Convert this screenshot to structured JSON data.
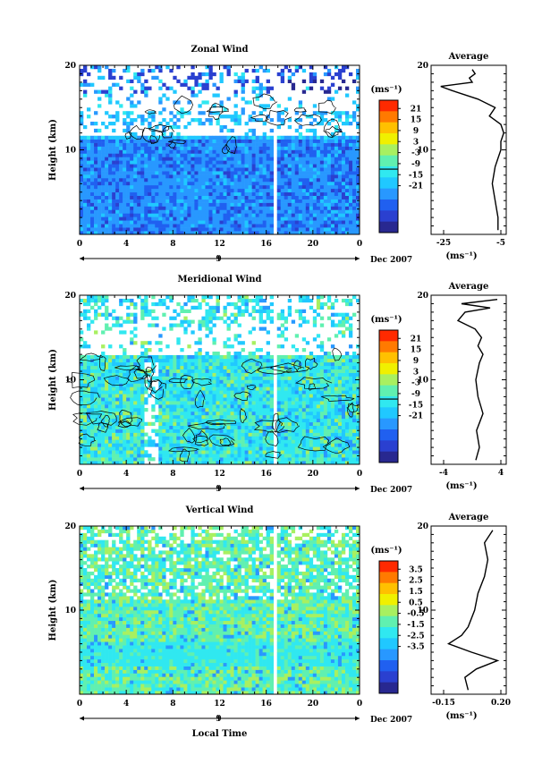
{
  "chart_data": [
    {
      "type": "heatmap",
      "title": "Zonal Wind",
      "ylabel": "Height (km)",
      "units": "(ms⁻¹)",
      "ylim": [
        0,
        20
      ],
      "yticks": [
        "20",
        "10"
      ],
      "xticks": [
        "0",
        "4",
        "8",
        "12",
        "16",
        "20",
        "0"
      ],
      "date_tick": "9",
      "date_label": "Dec 2007",
      "colorbar_ticks": [
        "21",
        "15",
        "9",
        "3",
        "-3",
        "-9",
        "-15",
        "-21"
      ],
      "profile": {
        "title": "Average",
        "xticks": [
          "-25",
          "-5"
        ],
        "xlabel": "(ms⁻¹)",
        "yticks": [
          "20",
          "10"
        ],
        "height_km": [
          0.5,
          2,
          4,
          6,
          8,
          9,
          10,
          11,
          12,
          13,
          14,
          15,
          16,
          17,
          17.5,
          18,
          18.5,
          19,
          19.5
        ],
        "value": [
          -6,
          -6,
          -7,
          -8,
          -7,
          -6,
          -5,
          -5,
          -4,
          -5,
          -9,
          -7,
          -13,
          -22,
          -26,
          -15,
          -16,
          -14,
          -15
        ]
      }
    },
    {
      "type": "heatmap",
      "title": "Meridional Wind",
      "ylabel": "Height (km)",
      "units": "(ms⁻¹)",
      "ylim": [
        0,
        20
      ],
      "yticks": [
        "20",
        "10"
      ],
      "xticks": [
        "0",
        "4",
        "8",
        "12",
        "16",
        "20",
        "0"
      ],
      "date_tick": "9",
      "date_label": "Dec 2007",
      "colorbar_ticks": [
        "21",
        "15",
        "9",
        "3",
        "-3",
        "-9",
        "-15",
        "-21"
      ],
      "profile": {
        "title": "Average",
        "xticks": [
          "-4",
          "4"
        ],
        "xlabel": "(ms⁻¹)",
        "yticks": [
          "20",
          "10"
        ],
        "height_km": [
          0.5,
          2,
          4,
          6,
          8,
          10,
          12,
          13,
          14,
          15,
          16,
          17,
          18,
          18.5,
          19,
          19.5
        ],
        "value": [
          0.5,
          1.0,
          0.6,
          1.5,
          0.8,
          0.5,
          1.0,
          1.5,
          0.8,
          1.3,
          0.4,
          -2.0,
          -1.0,
          2.5,
          -1.5,
          3.5
        ]
      }
    },
    {
      "type": "heatmap",
      "title": "Vertical Wind",
      "ylabel": "Height (km)",
      "xlabel": "Local Time",
      "units": "(ms⁻¹)",
      "ylim": [
        0,
        20
      ],
      "yticks": [
        "20",
        "10"
      ],
      "xticks": [
        "0",
        "4",
        "8",
        "12",
        "16",
        "20",
        "0"
      ],
      "date_tick": "9",
      "date_label": "Dec 2007",
      "colorbar_ticks": [
        "3.5",
        "2.5",
        "1.5",
        "0.5",
        "-0.5",
        "-1.5",
        "-2.5",
        "-3.5"
      ],
      "profile": {
        "title": "Average",
        "xticks": [
          "-0.15",
          "0.20"
        ],
        "xlabel": "(ms⁻¹)",
        "yticks": [
          "20",
          "10"
        ],
        "height_km": [
          0.5,
          2,
          3,
          4,
          5,
          6,
          7,
          8,
          10,
          12,
          14,
          16,
          18,
          19.5
        ],
        "value": [
          0.0,
          -0.02,
          0.05,
          0.18,
          0.02,
          -0.12,
          -0.04,
          0.0,
          0.04,
          0.06,
          0.1,
          0.12,
          0.1,
          0.15
        ]
      }
    }
  ]
}
